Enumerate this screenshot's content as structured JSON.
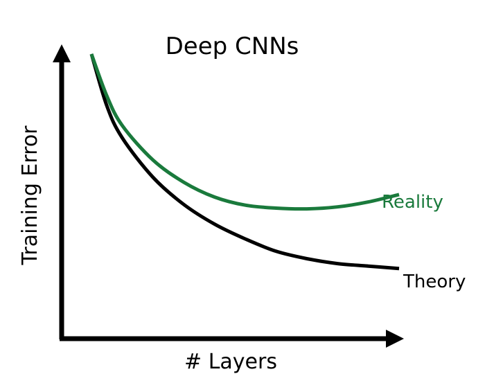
{
  "chart_data": {
    "type": "line",
    "title": "Deep CNNs",
    "xlabel": "# Layers",
    "ylabel": "Training Error",
    "grid": false,
    "series": [
      {
        "name": "Theory",
        "color": "#000000",
        "x": [
          0.0,
          0.05,
          0.1,
          0.2,
          0.3,
          0.4,
          0.5,
          0.6,
          0.7,
          0.8,
          0.9,
          1.0
        ],
        "y": [
          1.0,
          0.79,
          0.66,
          0.5,
          0.39,
          0.31,
          0.25,
          0.2,
          0.17,
          0.15,
          0.14,
          0.13
        ]
      },
      {
        "name": "Reality",
        "color": "#1a7a3c",
        "x": [
          0.0,
          0.05,
          0.1,
          0.2,
          0.3,
          0.4,
          0.5,
          0.6,
          0.7,
          0.8,
          0.9,
          1.0
        ],
        "y": [
          1.0,
          0.83,
          0.71,
          0.57,
          0.48,
          0.42,
          0.387,
          0.375,
          0.372,
          0.38,
          0.4,
          0.43
        ]
      }
    ]
  }
}
